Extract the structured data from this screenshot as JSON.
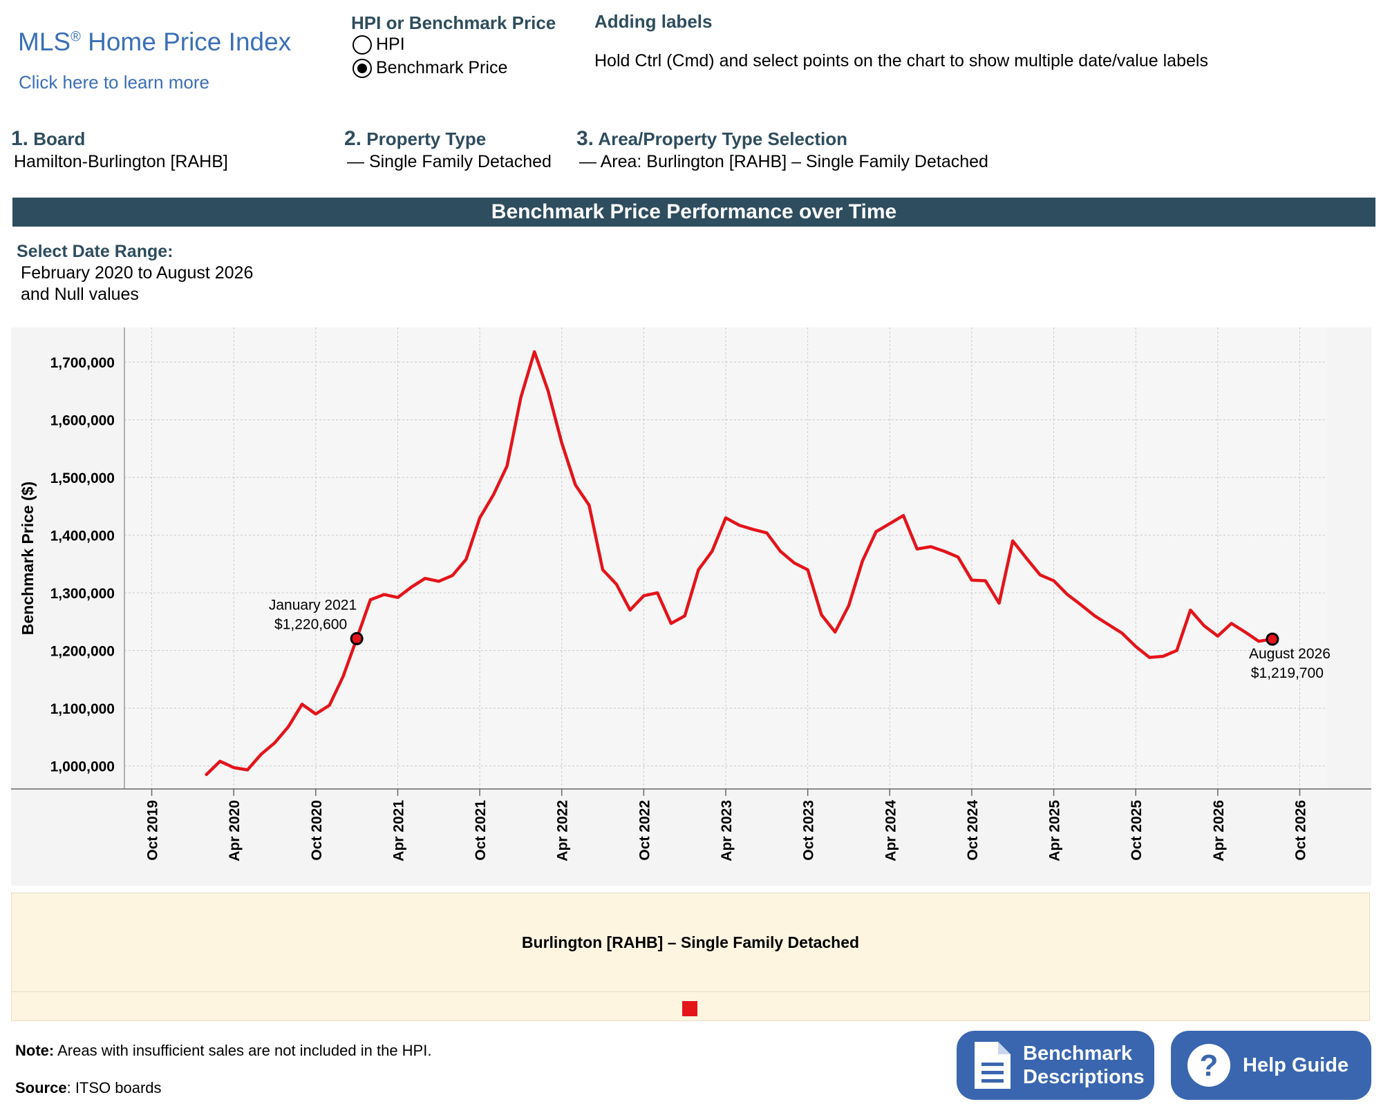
{
  "header": {
    "mls_title": "MLS",
    "mls_reg": "®",
    "mls_title_rest": " Home Price Index",
    "learn_link": "Click here to learn more",
    "measure_title": "HPI or Benchmark Price",
    "measure_options": [
      {
        "label": "HPI",
        "selected": false
      },
      {
        "label": "Benchmark Price",
        "selected": true
      }
    ],
    "labels_title": "Adding labels",
    "labels_text": "Hold Ctrl (Cmd) and select points on the chart to show multiple date/value labels"
  },
  "steps": [
    {
      "num": "1.",
      "title": "Board",
      "value": "Hamilton-Burlington [RAHB]"
    },
    {
      "num": "2.",
      "title": "Property Type",
      "value": "— Single Family Detached"
    },
    {
      "num": "3.",
      "title": "Area/Property Type Selection",
      "value": "— Area: Burlington [RAHB] – Single Family Detached"
    }
  ],
  "banner": "Benchmark Price Performance over Time",
  "date_range": {
    "title": "Select Date Range:",
    "line1": "February 2020 to August 2026",
    "line2": "and Null values"
  },
  "legend": {
    "title": "Burlington [RAHB] – Single Family Detached"
  },
  "footer": {
    "note_label": "Note:",
    "note_text": " Areas with insufficient sales are not included in the HPI.",
    "source_label": "Source",
    "source_text": ": ITSO boards",
    "bench_btn_line1": "Benchmark",
    "bench_btn_line2": "Descriptions",
    "help_btn": "Help Guide"
  },
  "colors": {
    "accent": "#2e4d5e",
    "line": "#e4141b",
    "button": "#3a66b0"
  },
  "icons": [
    "document-icon",
    "question-icon"
  ],
  "chart_data": {
    "type": "line",
    "ylabel": "Benchmark Price ($)",
    "xlabel": "",
    "grid": true,
    "ylim": [
      960000,
      1760000
    ],
    "y_ticks": [
      1000000,
      1100000,
      1200000,
      1300000,
      1400000,
      1500000,
      1600000,
      1700000
    ],
    "y_tick_labels": [
      "1,000,000",
      "1,100,000",
      "1,200,000",
      "1,300,000",
      "1,400,000",
      "1,500,000",
      "1,600,000",
      "1,700,000"
    ],
    "x_range": [
      "2019-08",
      "2026-12"
    ],
    "x_ticks": [
      "2019-10",
      "2020-04",
      "2020-10",
      "2021-04",
      "2021-10",
      "2022-04",
      "2022-10",
      "2023-04",
      "2023-10",
      "2024-04",
      "2024-10",
      "2025-04",
      "2025-10",
      "2026-04",
      "2026-10"
    ],
    "x_tick_labels": [
      "Oct 2019",
      "Apr 2020",
      "Oct 2020",
      "Apr 2021",
      "Oct 2021",
      "Apr 2022",
      "Oct 2022",
      "Apr 2023",
      "Oct 2023",
      "Apr 2024",
      "Oct 2024",
      "Apr 2025",
      "Oct 2025",
      "Apr 2026",
      "Oct 2026"
    ],
    "series": [
      {
        "name": "Burlington [RAHB] – Single Family Detached",
        "color": "#e4141b",
        "x": [
          "2020-02",
          "2020-03",
          "2020-04",
          "2020-05",
          "2020-06",
          "2020-07",
          "2020-08",
          "2020-09",
          "2020-10",
          "2020-11",
          "2020-12",
          "2021-01",
          "2021-02",
          "2021-03",
          "2021-04",
          "2021-05",
          "2021-06",
          "2021-07",
          "2021-08",
          "2021-09",
          "2021-10",
          "2021-11",
          "2021-12",
          "2022-01",
          "2022-02",
          "2022-03",
          "2022-04",
          "2022-05",
          "2022-06",
          "2022-07",
          "2022-08",
          "2022-09",
          "2022-10",
          "2022-11",
          "2022-12",
          "2023-01",
          "2023-02",
          "2023-03",
          "2023-04",
          "2023-05",
          "2023-06",
          "2023-07",
          "2023-08",
          "2023-09",
          "2023-10",
          "2023-11",
          "2023-12",
          "2024-01",
          "2024-02",
          "2024-03",
          "2024-04",
          "2024-05",
          "2024-06",
          "2024-07",
          "2024-08",
          "2024-09",
          "2024-10",
          "2024-11",
          "2024-12",
          "2025-01",
          "2025-02",
          "2025-03",
          "2025-04",
          "2025-05",
          "2025-06",
          "2025-07",
          "2025-08",
          "2025-09",
          "2025-10",
          "2025-11",
          "2025-12",
          "2026-01",
          "2026-02",
          "2026-03",
          "2026-04",
          "2026-05",
          "2026-06",
          "2026-07",
          "2026-08"
        ],
        "y": [
          985000,
          1008000,
          997000,
          993000,
          1020000,
          1040000,
          1068000,
          1107000,
          1090000,
          1105000,
          1155000,
          1220600,
          1288000,
          1297000,
          1292000,
          1310000,
          1325000,
          1320000,
          1330000,
          1358000,
          1430000,
          1470000,
          1520000,
          1638000,
          1718000,
          1650000,
          1560000,
          1487000,
          1452000,
          1340000,
          1315000,
          1270000,
          1295000,
          1300000,
          1247000,
          1260000,
          1340000,
          1372000,
          1430000,
          1417000,
          1410000,
          1404000,
          1372000,
          1352000,
          1340000,
          1262000,
          1232000,
          1278000,
          1355000,
          1406000,
          1420000,
          1434000,
          1376000,
          1380000,
          1372000,
          1362000,
          1322000,
          1321000,
          1282000,
          1390000,
          1360000,
          1331000,
          1321000,
          1297000,
          1279000,
          1260000,
          1245000,
          1230000,
          1207000,
          1188000,
          1190000,
          1200000,
          1270000,
          1243000,
          1225000,
          1247000,
          1232000,
          1216000,
          1219700
        ]
      }
    ],
    "annotations": [
      {
        "x": "2021-01",
        "date": "January 2021",
        "value": "$1,220,600"
      },
      {
        "x": "2026-08",
        "date": "August 2026",
        "value": "$1,219,700"
      }
    ]
  }
}
